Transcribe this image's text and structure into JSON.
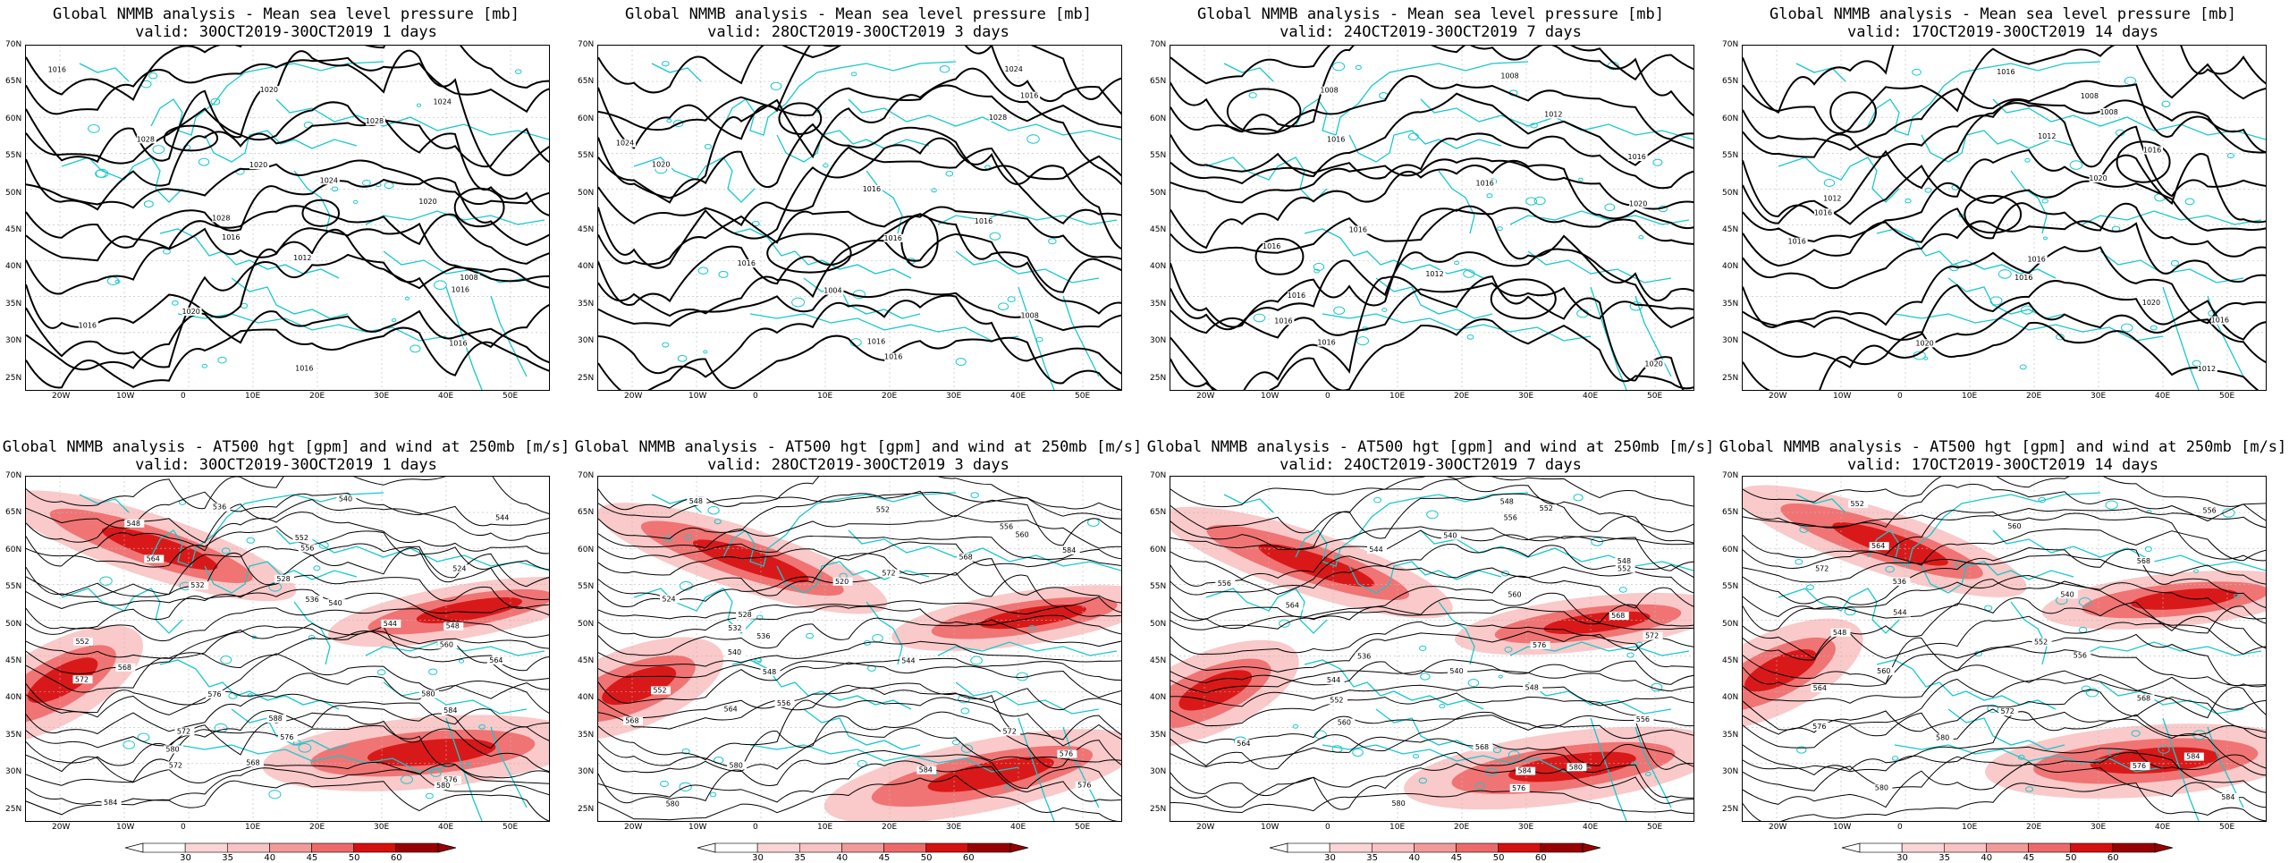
{
  "colors": {
    "coastline": "#18c8cc",
    "contour": "#000000",
    "shade_light": "#f9c3c3",
    "shade_mid": "#ee6a6a",
    "shade_dark": "#d60f0f",
    "shade_max": "#9a0000"
  },
  "map_axes": {
    "lat_labels": [
      "70N",
      "65N",
      "60N",
      "55N",
      "50N",
      "45N",
      "40N",
      "35N",
      "30N",
      "25N"
    ],
    "lon_labels": [
      "20W",
      "10W",
      "0",
      "10E",
      "20E",
      "30E",
      "40E",
      "50E"
    ]
  },
  "rows": [
    {
      "id": "mslp",
      "title_line1": "Global NMMB analysis - Mean sea level pressure [mb]",
      "panels": [
        {
          "valid": "valid: 30OCT2019-30OCT2019   1 days",
          "contours": [
            "1016",
            "1020",
            "1024",
            "1028",
            "1028",
            "1020",
            "1024",
            "1020",
            "1028",
            "1016",
            "1012",
            "1008",
            "1016",
            "1020",
            "1016",
            "1016",
            "1016"
          ]
        },
        {
          "valid": "valid: 28OCT2019-30OCT2019   3 days",
          "contours": [
            "1024",
            "1016",
            "1028",
            "1024",
            "1020",
            "1016",
            "1016",
            "1016",
            "1016",
            "1004",
            "1008",
            "1016",
            "1016"
          ]
        },
        {
          "valid": "valid: 24OCT2019-30OCT2019   7 days",
          "contours": [
            "1008",
            "1008",
            "1012",
            "1016",
            "1016",
            "1016",
            "1020",
            "1016",
            "1016",
            "1012",
            "1016",
            "1016",
            "1016",
            "1020"
          ]
        },
        {
          "valid": "valid: 17OCT2019-30OCT2019   14 days",
          "contours": [
            "1016",
            "1008",
            "1008",
            "1012",
            "1016",
            "1020",
            "1012",
            "1016",
            "1016",
            "1016",
            "1016",
            "1020",
            "1016",
            "1020",
            "1012"
          ]
        }
      ]
    },
    {
      "id": "at500",
      "title_line1": "Global NMMB analysis - AT500 hgt [gpm] and wind at 250mb [m/s]",
      "panels": [
        {
          "valid": "valid: 30OCT2019-30OCT2019   1 days",
          "contours": [
            "540",
            "536",
            "544",
            "548",
            "552",
            "556",
            "564",
            "524",
            "528",
            "532",
            "536",
            "540",
            "544",
            "548",
            "552",
            "560",
            "564",
            "568",
            "572",
            "576",
            "580",
            "584",
            "588",
            "572",
            "576",
            "580",
            "568",
            "572",
            "576",
            "580",
            "584"
          ]
        },
        {
          "valid": "valid: 28OCT2019-30OCT2019   3 days",
          "contours": [
            "548",
            "552",
            "556",
            "560",
            "584",
            "568",
            "572",
            "520",
            "524",
            "528",
            "532",
            "536",
            "540",
            "544",
            "548",
            "552",
            "556",
            "564",
            "568",
            "572",
            "576",
            "580",
            "584",
            "576",
            "580"
          ]
        },
        {
          "valid": "valid: 24OCT2019-30OCT2019   7 days",
          "contours": [
            "548",
            "552",
            "556",
            "540",
            "544",
            "548",
            "552",
            "556",
            "560",
            "564",
            "568",
            "572",
            "576",
            "536",
            "540",
            "544",
            "548",
            "552",
            "556",
            "560",
            "564",
            "568",
            "580",
            "584",
            "576",
            "580"
          ]
        },
        {
          "valid": "valid: 17OCT2019-30OCT2019   14 days",
          "contours": [
            "552",
            "556",
            "560",
            "564",
            "568",
            "572",
            "536",
            "540",
            "544",
            "548",
            "552",
            "556",
            "560",
            "564",
            "568",
            "572",
            "576",
            "580",
            "584",
            "576",
            "580",
            "584"
          ]
        }
      ],
      "colorbar_labels": [
        "30",
        "35",
        "40",
        "45",
        "50",
        "60"
      ]
    }
  ]
}
